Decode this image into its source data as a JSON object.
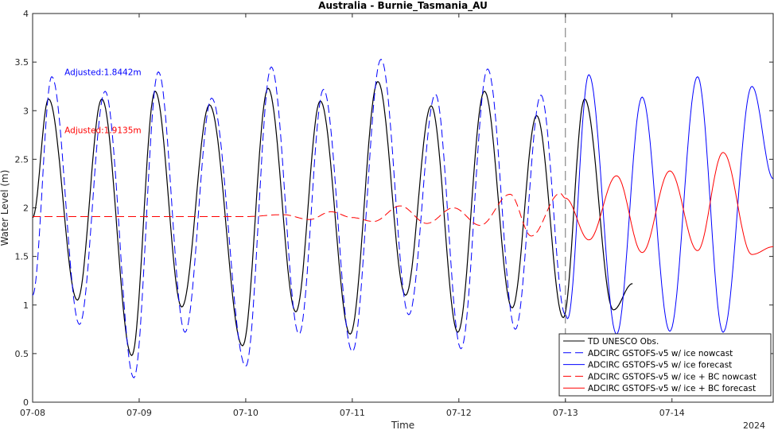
{
  "chart_data": {
    "type": "line",
    "title": "Australia - Burnie_Tasmania_AU",
    "xlabel": "Time",
    "ylabel": "Water Level (m)",
    "year_label": "2024",
    "xlim": [
      0,
      6.95
    ],
    "ylim": [
      0,
      4
    ],
    "grid": false,
    "legend_position": "bottom-right",
    "x_tick_values": [
      0,
      1,
      2,
      3,
      4,
      5,
      6
    ],
    "x_tick_labels": [
      "07-08",
      "07-09",
      "07-10",
      "07-11",
      "07-12",
      "07-13",
      "07-14"
    ],
    "y_tick_values": [
      0,
      0.5,
      1,
      1.5,
      2,
      2.5,
      3,
      3.5,
      4
    ],
    "y_tick_labels": [
      "0",
      "0.5",
      "1",
      "1.5",
      "2",
      "2.5",
      "3",
      "3.5",
      "4"
    ],
    "nowcast_divider_x": 5,
    "annotations": [
      {
        "text": "Adjusted:1.8442m",
        "color": "#0000ff",
        "x": 0.3,
        "y": 3.4
      },
      {
        "text": "Adjusted:1.9135m",
        "color": "#ff0000",
        "x": 0.3,
        "y": 2.8
      }
    ],
    "series": [
      {
        "name": "TD UNESCO Obs.",
        "color": "#000000",
        "dash": "solid",
        "x": [
          0.0,
          0.15,
          0.42,
          0.65,
          0.93,
          1.15,
          1.4,
          1.66,
          1.97,
          2.21,
          2.47,
          2.7,
          2.98,
          3.24,
          3.5,
          3.74,
          3.99,
          4.24,
          4.5,
          4.73,
          4.98,
          5.18,
          5.45,
          5.63
        ],
        "y": [
          1.9,
          3.12,
          1.05,
          3.12,
          0.48,
          3.2,
          0.98,
          3.06,
          0.58,
          3.23,
          0.93,
          3.1,
          0.7,
          3.3,
          1.1,
          3.05,
          0.72,
          3.2,
          0.97,
          2.95,
          0.87,
          3.12,
          0.95,
          1.22
        ]
      },
      {
        "name": "ADCIRC GSTOFS-v5 w/ ice nowcast",
        "color": "#0000ff",
        "dash": "dashed",
        "x": [
          0.0,
          0.18,
          0.44,
          0.68,
          0.95,
          1.18,
          1.43,
          1.68,
          2.0,
          2.24,
          2.5,
          2.73,
          3.0,
          3.27,
          3.53,
          3.78,
          4.02,
          4.27,
          4.53,
          4.77,
          5.0
        ],
        "y": [
          1.1,
          3.35,
          0.8,
          3.2,
          0.25,
          3.4,
          0.72,
          3.13,
          0.37,
          3.45,
          0.7,
          3.22,
          0.52,
          3.53,
          0.9,
          3.17,
          0.55,
          3.43,
          0.75,
          3.16,
          0.9
        ]
      },
      {
        "name": "ADCIRC GSTOFS-v5 w/ ice forecast",
        "color": "#0000ff",
        "dash": "solid",
        "x": [
          5.0,
          5.02,
          5.22,
          5.48,
          5.72,
          5.98,
          6.24,
          6.48,
          6.75,
          6.95
        ],
        "y": [
          0.9,
          0.86,
          3.37,
          0.7,
          3.14,
          0.73,
          3.35,
          0.72,
          3.25,
          2.3
        ]
      },
      {
        "name": "ADCIRC GSTOFS-v5 w/ ice + BC nowcast",
        "color": "#ff0000",
        "dash": "dashed",
        "x": [
          0.0,
          0.25,
          0.5,
          0.75,
          1.0,
          1.25,
          1.5,
          1.75,
          2.0,
          2.35,
          2.6,
          2.8,
          3.0,
          3.2,
          3.45,
          3.7,
          3.95,
          4.2,
          4.48,
          4.68,
          4.95,
          5.0
        ],
        "y": [
          1.91,
          1.91,
          1.91,
          1.91,
          1.91,
          1.91,
          1.91,
          1.91,
          1.91,
          1.93,
          1.88,
          1.96,
          1.9,
          1.86,
          2.02,
          1.84,
          2.0,
          1.82,
          2.14,
          1.71,
          2.15,
          2.1
        ]
      },
      {
        "name": "ADCIRC GSTOFS-v5 w/ ice + BC forecast",
        "color": "#ff0000",
        "dash": "solid",
        "x": [
          5.0,
          5.22,
          5.48,
          5.72,
          5.98,
          6.24,
          6.48,
          6.75,
          6.95
        ],
        "y": [
          2.1,
          1.67,
          2.33,
          1.54,
          2.38,
          1.56,
          2.57,
          1.52,
          1.6
        ]
      }
    ]
  }
}
